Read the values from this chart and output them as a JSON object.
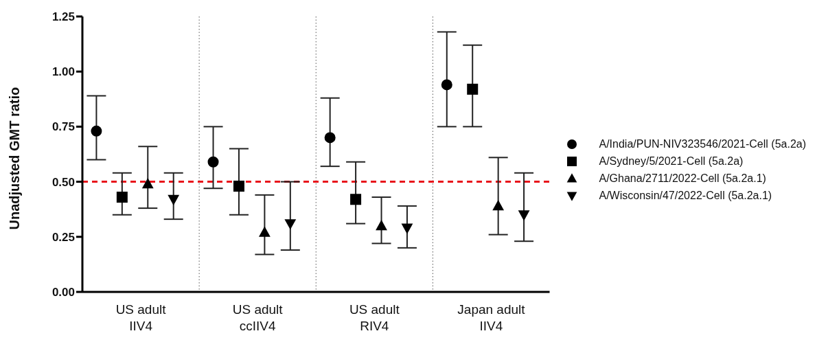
{
  "chart_data": {
    "type": "scatter",
    "ylabel": "Unadjusted GMT ratio",
    "categories": [
      "US adult IIV4",
      "US adult ccIIV4",
      "US adult RIV4",
      "Japan adult IIV4"
    ],
    "series": [
      {
        "name": "A/India/PUN-NIV323546/2021-Cell (5a.2a)",
        "color": "#000000",
        "marker": "circle",
        "values": [
          0.73,
          0.59,
          0.7,
          0.94
        ],
        "errors": [
          [
            0.6,
            0.89
          ],
          [
            0.47,
            0.75
          ],
          [
            0.57,
            0.88
          ],
          [
            0.75,
            1.18
          ]
        ]
      },
      {
        "name": "A/Sydney/5/2021-Cell (5a.2a)",
        "color": "#000000",
        "marker": "square",
        "values": [
          0.43,
          0.48,
          0.42,
          0.92
        ],
        "errors": [
          [
            0.35,
            0.54
          ],
          [
            0.35,
            0.65
          ],
          [
            0.31,
            0.59
          ],
          [
            0.75,
            1.12
          ]
        ]
      },
      {
        "name": "A/Ghana/2711/2022-Cell (5a.2a.1)",
        "color": "#000000",
        "marker": "triangle",
        "values": [
          0.49,
          0.27,
          0.3,
          0.39
        ],
        "errors": [
          [
            0.38,
            0.66
          ],
          [
            0.17,
            0.44
          ],
          [
            0.22,
            0.43
          ],
          [
            0.26,
            0.61
          ]
        ]
      },
      {
        "name": "A/Wisconsin/47/2022-Cell (5a.2a.1)",
        "color": "#000000",
        "marker": "triangle-down",
        "values": [
          0.42,
          0.31,
          0.29,
          0.35
        ],
        "errors": [
          [
            0.33,
            0.54
          ],
          [
            0.19,
            0.5
          ],
          [
            0.2,
            0.39
          ],
          [
            0.23,
            0.54
          ]
        ]
      }
    ],
    "ylim": [
      0,
      1.25
    ],
    "yticks": [
      {
        "value": 0,
        "label": "0.00"
      },
      {
        "value": 0.25,
        "label": "0.25"
      },
      {
        "value": 0.5,
        "label": "0.50"
      },
      {
        "value": 0.75,
        "label": "0.75"
      },
      {
        "value": 1,
        "label": "1.00"
      },
      {
        "value": 1.25,
        "label": "1.25"
      }
    ],
    "ref_lines": [
      {
        "axis": "y",
        "value": 0.5,
        "color": "#e8141b",
        "line_style": "dashed"
      }
    ],
    "grid": "x",
    "legend": "right"
  }
}
